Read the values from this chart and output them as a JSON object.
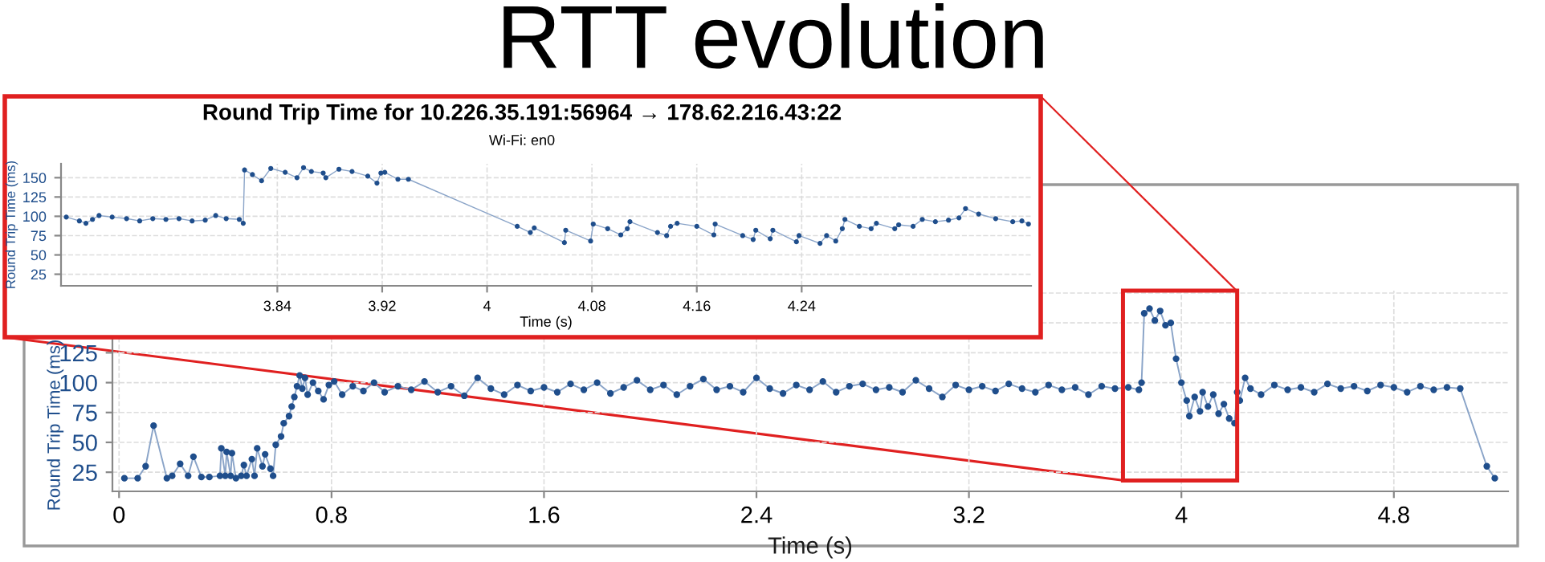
{
  "chart_data": [
    {
      "type": "line",
      "xlabel": "Time (s)",
      "ylabel": "Round Trip Time (ms)",
      "marker": "circle",
      "line_style": "solid",
      "grid": true,
      "xlim": [
        -0.025,
        5.23
      ],
      "xticks": [
        0,
        {
          "value": 0.8,
          "label": "0.8"
        },
        {
          "value": 1.6,
          "label": "1.6"
        },
        {
          "value": 2.4,
          "label": "2.4"
        },
        {
          "value": 3.2,
          "label": "3.2"
        },
        4,
        {
          "value": 4.8,
          "label": "4.8"
        }
      ],
      "ylim": [
        9,
        177
      ],
      "yticks": [
        25,
        50,
        75,
        100,
        125,
        {
          "value": 150,
          "label": null
        },
        {
          "value": 175,
          "label": null
        }
      ],
      "series": [
        {
          "color": "#1f4e8c",
          "x": [
            0.02,
            0.07,
            0.1,
            0.13,
            0.18,
            0.2,
            0.23,
            0.26,
            0.28,
            0.31,
            0.34,
            0.38,
            0.385,
            0.4,
            0.405,
            0.42,
            0.425,
            0.44,
            0.46,
            0.47,
            0.48,
            0.5,
            0.51,
            0.52,
            0.54,
            0.55,
            0.57,
            0.58,
            0.59,
            0.61,
            0.62,
            0.64,
            0.65,
            0.66,
            0.67,
            0.68,
            0.69,
            0.7,
            0.71,
            0.73,
            0.75,
            0.77,
            0.79,
            0.81,
            0.84,
            0.88,
            0.92,
            0.96,
            1.0,
            1.05,
            1.1,
            1.15,
            1.2,
            1.25,
            1.3,
            1.35,
            1.4,
            1.45,
            1.5,
            1.55,
            1.6,
            1.65,
            1.7,
            1.75,
            1.8,
            1.85,
            1.9,
            1.95,
            2.0,
            2.05,
            2.1,
            2.15,
            2.2,
            2.25,
            2.3,
            2.35,
            2.4,
            2.45,
            2.5,
            2.55,
            2.6,
            2.65,
            2.7,
            2.75,
            2.8,
            2.85,
            2.9,
            2.95,
            3.0,
            3.05,
            3.1,
            3.15,
            3.2,
            3.25,
            3.3,
            3.35,
            3.4,
            3.45,
            3.5,
            3.55,
            3.6,
            3.65,
            3.7,
            3.75,
            3.8,
            3.84,
            3.85,
            3.86,
            3.88,
            3.9,
            3.92,
            3.94,
            3.96,
            3.98,
            4.0,
            4.02,
            4.03,
            4.05,
            4.07,
            4.08,
            4.1,
            4.12,
            4.14,
            4.16,
            4.18,
            4.2,
            4.21,
            4.22,
            4.24,
            4.26,
            4.3,
            4.35,
            4.4,
            4.45,
            4.5,
            4.55,
            4.6,
            4.65,
            4.7,
            4.75,
            4.8,
            4.85,
            4.9,
            4.95,
            5.0,
            5.05,
            5.15,
            5.18
          ],
          "values": [
            20,
            20,
            30,
            64,
            20,
            22,
            32,
            22,
            38,
            21,
            21,
            22,
            45,
            22,
            42,
            22,
            41,
            20,
            22,
            31,
            22,
            36,
            22,
            45,
            30,
            40,
            28,
            22,
            48,
            55,
            66,
            72,
            80,
            88,
            97,
            106,
            95,
            104,
            90,
            100,
            93,
            86,
            98,
            101,
            90,
            97,
            93,
            100,
            92,
            97,
            94,
            101,
            92,
            97,
            89,
            104,
            95,
            90,
            98,
            93,
            96,
            92,
            99,
            94,
            100,
            91,
            96,
            102,
            94,
            98,
            90,
            97,
            103,
            94,
            97,
            92,
            104,
            95,
            91,
            98,
            94,
            101,
            92,
            97,
            99,
            94,
            96,
            92,
            102,
            95,
            88,
            98,
            94,
            97,
            93,
            99,
            95,
            92,
            98,
            94,
            96,
            90,
            97,
            95,
            96,
            94,
            100,
            158,
            162,
            152,
            160,
            148,
            150,
            120,
            100,
            85,
            72,
            88,
            76,
            92,
            80,
            90,
            74,
            82,
            70,
            66,
            92,
            85,
            104,
            95,
            90,
            98,
            94,
            96,
            92,
            99,
            95,
            97,
            93,
            98,
            96,
            92,
            97,
            94,
            96,
            95,
            30,
            20
          ]
        }
      ]
    },
    {
      "type": "line",
      "title": "Round Trip Time for 10.226.35.191:56964 → 178.62.216.43:22",
      "subtitle": "Wi-Fi: en0",
      "xlabel": "Time (s)",
      "ylabel": "Round Trip Time (ms)",
      "marker": "circle",
      "line_style": "solid",
      "grid": true,
      "xlim": [
        3.675,
        4.415
      ],
      "xticks": [
        {
          "value": 3.84,
          "label": "3.84"
        },
        {
          "value": 3.92,
          "label": "3.92"
        },
        4,
        {
          "value": 4.08,
          "label": "4.08"
        },
        {
          "value": 4.16,
          "label": "4.16"
        },
        {
          "value": 4.24,
          "label": "4.24"
        }
      ],
      "ylim": [
        10,
        168
      ],
      "yticks": [
        25,
        50,
        75,
        100,
        125,
        150
      ],
      "series": [
        {
          "color": "#1f4e8c",
          "x": [
            3.679,
            3.689,
            3.694,
            3.699,
            3.704,
            3.714,
            3.725,
            3.735,
            3.745,
            3.755,
            3.765,
            3.775,
            3.785,
            3.793,
            3.801,
            3.811,
            3.814,
            3.815,
            3.821,
            3.828,
            3.835,
            3.846,
            3.855,
            3.86,
            3.866,
            3.875,
            3.877,
            3.887,
            3.897,
            3.909,
            3.916,
            3.919,
            3.922,
            3.932,
            3.94,
            4.023,
            4.033,
            4.036,
            4.059,
            4.06,
            4.079,
            4.081,
            4.092,
            4.102,
            4.107,
            4.109,
            4.13,
            4.137,
            4.14,
            4.145,
            4.16,
            4.173,
            4.174,
            4.195,
            4.203,
            4.205,
            4.216,
            4.218,
            4.236,
            4.238,
            4.254,
            4.259,
            4.266,
            4.271,
            4.273,
            4.284,
            4.293,
            4.297,
            4.311,
            4.314,
            4.325,
            4.332,
            4.342,
            4.352,
            4.36,
            4.365,
            4.375,
            4.388,
            4.401,
            4.408,
            4.413
          ],
          "values": [
            99,
            94,
            91,
            96,
            101,
            99,
            97,
            94,
            97,
            96,
            97,
            94,
            95,
            101,
            97,
            96,
            91,
            160,
            154,
            146,
            162,
            157,
            150,
            163,
            158,
            156,
            150,
            161,
            158,
            152,
            143,
            156,
            157,
            148,
            148,
            87,
            79,
            85,
            66,
            82,
            68,
            90,
            84,
            76,
            84,
            93,
            79,
            75,
            87,
            91,
            87,
            76,
            90,
            75,
            70,
            82,
            71,
            82,
            67,
            75,
            65,
            75,
            68,
            84,
            96,
            87,
            84,
            91,
            84,
            89,
            87,
            96,
            93,
            95,
            98,
            110,
            103,
            97,
            93,
            94,
            90
          ]
        }
      ]
    },
    {
      "type": "other",
      "title": "RTT evolution"
    }
  ]
}
